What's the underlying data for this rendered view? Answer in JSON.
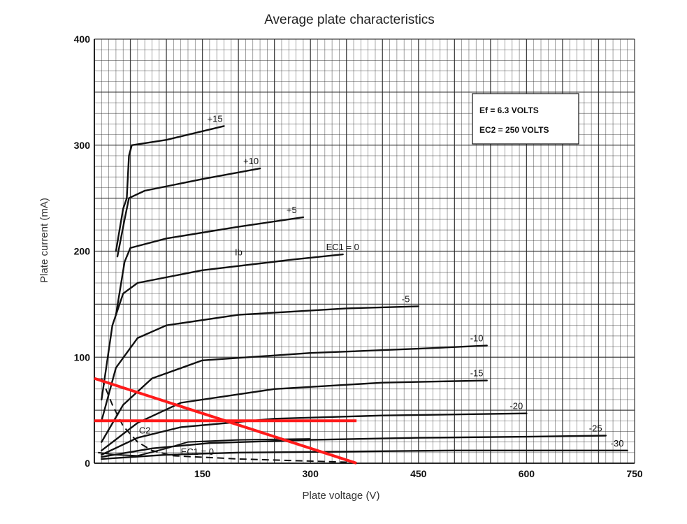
{
  "chart_data": {
    "type": "line",
    "title": "Average plate characteristics",
    "xlabel": "Plate voltage (V)",
    "ylabel": "Plate current (mA)",
    "xlim": [
      0,
      750
    ],
    "ylim": [
      0,
      400
    ],
    "x_ticks": [
      150,
      300,
      450,
      600,
      750
    ],
    "y_ticks": [
      0,
      100,
      200,
      300,
      400
    ],
    "grid": true,
    "annotation_box": [
      "Ef = 6.3 VOLTS",
      "EC2 = 250 VOLTS"
    ],
    "series": [
      {
        "label": "+15",
        "points": [
          [
            30,
            200
          ],
          [
            40,
            240
          ],
          [
            45,
            250
          ],
          [
            48,
            290
          ],
          [
            52,
            300
          ],
          [
            100,
            305
          ],
          [
            180,
            318
          ]
        ]
      },
      {
        "label": "+10",
        "points": [
          [
            32,
            195
          ],
          [
            42,
            230
          ],
          [
            48,
            250
          ],
          [
            70,
            257
          ],
          [
            150,
            268
          ],
          [
            230,
            278
          ]
        ]
      },
      {
        "label": "+5",
        "points": [
          [
            30,
            140
          ],
          [
            42,
            190
          ],
          [
            50,
            203
          ],
          [
            100,
            212
          ],
          [
            200,
            223
          ],
          [
            290,
            232
          ]
        ]
      },
      {
        "label": "EC1 = 0",
        "points": [
          [
            10,
            60
          ],
          [
            25,
            130
          ],
          [
            40,
            160
          ],
          [
            60,
            170
          ],
          [
            150,
            182
          ],
          [
            275,
            192
          ],
          [
            345,
            197
          ]
        ]
      },
      {
        "label": "-5",
        "points": [
          [
            10,
            40
          ],
          [
            30,
            90
          ],
          [
            60,
            118
          ],
          [
            100,
            130
          ],
          [
            200,
            140
          ],
          [
            350,
            146
          ],
          [
            450,
            148
          ]
        ]
      },
      {
        "label": "-10",
        "points": [
          [
            10,
            20
          ],
          [
            40,
            55
          ],
          [
            80,
            80
          ],
          [
            150,
            97
          ],
          [
            300,
            104
          ],
          [
            450,
            108
          ],
          [
            545,
            111
          ]
        ]
      },
      {
        "label": "-15",
        "points": [
          [
            10,
            12
          ],
          [
            60,
            38
          ],
          [
            120,
            57
          ],
          [
            250,
            70
          ],
          [
            400,
            76
          ],
          [
            545,
            78
          ]
        ]
      },
      {
        "label": "-20",
        "points": [
          [
            10,
            8
          ],
          [
            60,
            24
          ],
          [
            120,
            34
          ],
          [
            250,
            42
          ],
          [
            400,
            45
          ],
          [
            600,
            47
          ]
        ]
      },
      {
        "label": "-25",
        "points": [
          [
            10,
            6
          ],
          [
            80,
            14
          ],
          [
            160,
            19
          ],
          [
            300,
            22
          ],
          [
            450,
            24
          ],
          [
            600,
            25
          ],
          [
            710,
            26
          ]
        ]
      },
      {
        "label": "-30",
        "points": [
          [
            10,
            4
          ],
          [
            100,
            8
          ],
          [
            200,
            10
          ],
          [
            350,
            11
          ],
          [
            500,
            12
          ],
          [
            740,
            12
          ]
        ]
      }
    ],
    "screen_current_curve": {
      "label": "C2",
      "points": [
        [
          10,
          80
        ],
        [
          25,
          55
        ],
        [
          40,
          35
        ],
        [
          60,
          20
        ],
        [
          80,
          12
        ],
        [
          110,
          7
        ],
        [
          200,
          4
        ],
        [
          350,
          1
        ]
      ]
    },
    "low_curve": {
      "label": "EC1 = 0",
      "points": [
        [
          5,
          10
        ],
        [
          30,
          8
        ],
        [
          60,
          7
        ],
        [
          100,
          14
        ],
        [
          130,
          20
        ],
        [
          200,
          22
        ],
        [
          300,
          23
        ]
      ]
    },
    "ib_label": "Ib",
    "overlay_lines": [
      {
        "name": "load-line",
        "color": "#ff1a1a",
        "points": [
          [
            0,
            80
          ],
          [
            364,
            0
          ]
        ]
      },
      {
        "name": "current-line",
        "color": "#ff1a1a",
        "points": [
          [
            0,
            40
          ],
          [
            364,
            40
          ]
        ]
      }
    ]
  }
}
